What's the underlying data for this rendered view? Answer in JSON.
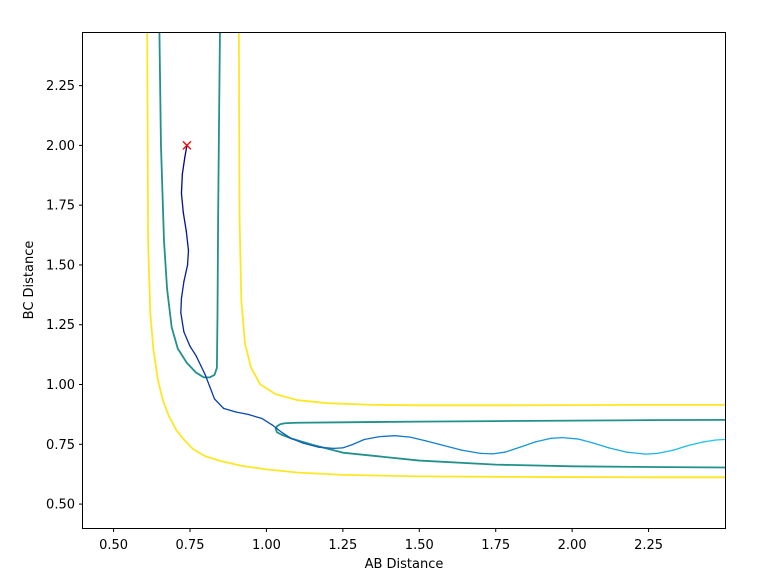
{
  "chart_data": {
    "type": "line",
    "title": "",
    "xlabel": "AB Distance",
    "ylabel": "BC Distance",
    "xlim": [
      0.4,
      2.5
    ],
    "ylim": [
      0.4,
      2.47
    ],
    "xticks": [
      0.5,
      0.75,
      1.0,
      1.25,
      1.5,
      1.75,
      2.0,
      2.25
    ],
    "xtick_labels": [
      "0.50",
      "0.75",
      "1.00",
      "1.25",
      "1.50",
      "1.75",
      "2.00",
      "2.25"
    ],
    "yticks": [
      0.5,
      0.75,
      1.0,
      1.25,
      1.5,
      1.75,
      2.0,
      2.25
    ],
    "ytick_labels": [
      "0.50",
      "0.75",
      "1.00",
      "1.25",
      "1.50",
      "1.75",
      "2.00",
      "2.25"
    ],
    "grid": false,
    "legend": "none",
    "contours": [
      {
        "level_color": "#fde725",
        "paths": [
          {
            "x": [
              0.61,
              0.613,
              0.62,
              0.63,
              0.645,
              0.66,
              0.68,
              0.705,
              0.73,
              0.76,
              0.8,
              0.85,
              0.92,
              1.0,
              1.1,
              1.25,
              1.5,
              1.75,
              2.0,
              2.25,
              2.5
            ],
            "y": [
              2.47,
              1.6,
              1.3,
              1.15,
              1.02,
              0.94,
              0.87,
              0.81,
              0.77,
              0.73,
              0.7,
              0.68,
              0.66,
              0.645,
              0.632,
              0.622,
              0.616,
              0.614,
              0.613,
              0.612,
              0.612
            ]
          },
          {
            "x": [
              0.91,
              0.912,
              0.918,
              0.93,
              0.95,
              0.98,
              1.03,
              1.1,
              1.2,
              1.35,
              1.5,
              1.75,
              2.0,
              2.25,
              2.5
            ],
            "y": [
              2.47,
              1.7,
              1.35,
              1.17,
              1.07,
              1.0,
              0.96,
              0.935,
              0.922,
              0.915,
              0.913,
              0.913,
              0.914,
              0.915,
              0.915
            ]
          }
        ]
      },
      {
        "level_color": "#21918c",
        "paths": [
          {
            "x": [
              0.65,
              0.655,
              0.665,
              0.675,
              0.69,
              0.71,
              0.74,
              0.77,
              0.795,
              0.815,
              0.83,
              0.838,
              0.84,
              0.842,
              0.845,
              0.848
            ],
            "y": [
              2.47,
              2.0,
              1.6,
              1.4,
              1.24,
              1.15,
              1.09,
              1.05,
              1.03,
              1.03,
              1.04,
              1.07,
              1.3,
              1.7,
              2.1,
              2.47
            ]
          },
          {
            "x": [
              2.5,
              2.25,
              2.0,
              1.75,
              1.5,
              1.25,
              1.1,
              1.06,
              1.045,
              1.035,
              1.03,
              1.035,
              1.05,
              1.08,
              1.15,
              1.25,
              1.5,
              1.75,
              2.0,
              2.25,
              2.5
            ],
            "y": [
              0.852,
              0.851,
              0.849,
              0.847,
              0.845,
              0.842,
              0.84,
              0.838,
              0.834,
              0.826,
              0.815,
              0.8,
              0.79,
              0.775,
              0.748,
              0.715,
              0.682,
              0.665,
              0.658,
              0.655,
              0.653
            ]
          }
        ]
      }
    ],
    "trajectory": {
      "x": [
        0.74,
        0.733,
        0.725,
        0.722,
        0.728,
        0.738,
        0.745,
        0.742,
        0.73,
        0.722,
        0.72,
        0.73,
        0.75,
        0.77,
        0.785,
        0.8,
        0.815,
        0.83,
        0.86,
        0.9,
        0.94,
        0.985,
        1.02,
        1.05,
        1.08,
        1.12,
        1.17,
        1.22,
        1.25,
        1.28,
        1.32,
        1.37,
        1.42,
        1.47,
        1.52,
        1.58,
        1.64,
        1.7,
        1.74,
        1.78,
        1.83,
        1.88,
        1.93,
        1.97,
        2.02,
        2.07,
        2.12,
        2.18,
        2.24,
        2.28,
        2.33,
        2.38,
        2.43,
        2.47,
        2.5
      ],
      "y": [
        2.0,
        1.95,
        1.88,
        1.8,
        1.72,
        1.64,
        1.56,
        1.5,
        1.43,
        1.36,
        1.3,
        1.22,
        1.16,
        1.12,
        1.08,
        1.04,
        0.99,
        0.94,
        0.9,
        0.885,
        0.875,
        0.858,
        0.83,
        0.8,
        0.775,
        0.755,
        0.738,
        0.733,
        0.735,
        0.748,
        0.77,
        0.782,
        0.786,
        0.78,
        0.765,
        0.745,
        0.725,
        0.712,
        0.71,
        0.717,
        0.738,
        0.76,
        0.775,
        0.778,
        0.772,
        0.755,
        0.735,
        0.717,
        0.709,
        0.712,
        0.725,
        0.745,
        0.76,
        0.768,
        0.77
      ]
    },
    "marker": {
      "x": 0.74,
      "y": 2.0,
      "symbol": "x",
      "color": "#ff0000"
    },
    "colors": {
      "contour_high": "#fde725",
      "contour_mid": "#21918c",
      "trajectory_start": "#00008b",
      "trajectory_end": "#1ec8f0"
    }
  }
}
